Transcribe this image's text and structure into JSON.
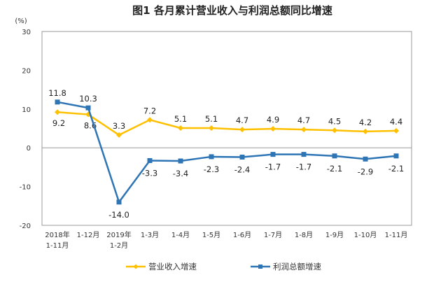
{
  "chart_data": {
    "type": "line",
    "title": "图1  各月累计营业收入与利润总额同比增速",
    "ylabel": "(%)",
    "xlabel": "",
    "ylim": [
      -20,
      30
    ],
    "yticks": [
      30,
      20,
      10,
      0,
      -10,
      -20
    ],
    "grid": false,
    "legend": "bottom",
    "categories": [
      [
        "2018年",
        "1-11月"
      ],
      [
        "1-12月"
      ],
      [
        "2019年",
        "1-2月"
      ],
      [
        "1-3月"
      ],
      [
        "1-4月"
      ],
      [
        "1-5月"
      ],
      [
        "1-6月"
      ],
      [
        "1-7月"
      ],
      [
        "1-8月"
      ],
      [
        "1-9月"
      ],
      [
        "1-10月"
      ],
      [
        "1-11月"
      ]
    ],
    "series": [
      {
        "name": "营业收入增速",
        "color": "#FFC000",
        "marker": "diamond",
        "values": [
          9.2,
          8.6,
          3.3,
          7.2,
          5.1,
          5.1,
          4.7,
          4.9,
          4.7,
          4.5,
          4.2,
          4.4
        ],
        "labels": [
          "9.2",
          "8.6",
          "3.3",
          "7.2",
          "5.1",
          "5.1",
          "4.7",
          "4.9",
          "4.7",
          "4.5",
          "4.2",
          "4.4"
        ]
      },
      {
        "name": "利润总额增速",
        "color": "#2E75B6",
        "marker": "square",
        "values": [
          11.8,
          10.3,
          -14.0,
          -3.3,
          -3.4,
          -2.3,
          -2.4,
          -1.7,
          -1.7,
          -2.1,
          -2.9,
          -2.1
        ],
        "labels": [
          "11.8",
          "10.3",
          "-14.0",
          "-3.3",
          "-3.4",
          "-2.3",
          "-2.4",
          "-1.7",
          "-1.7",
          "-2.1",
          "-2.9",
          "-2.1"
        ]
      }
    ]
  }
}
